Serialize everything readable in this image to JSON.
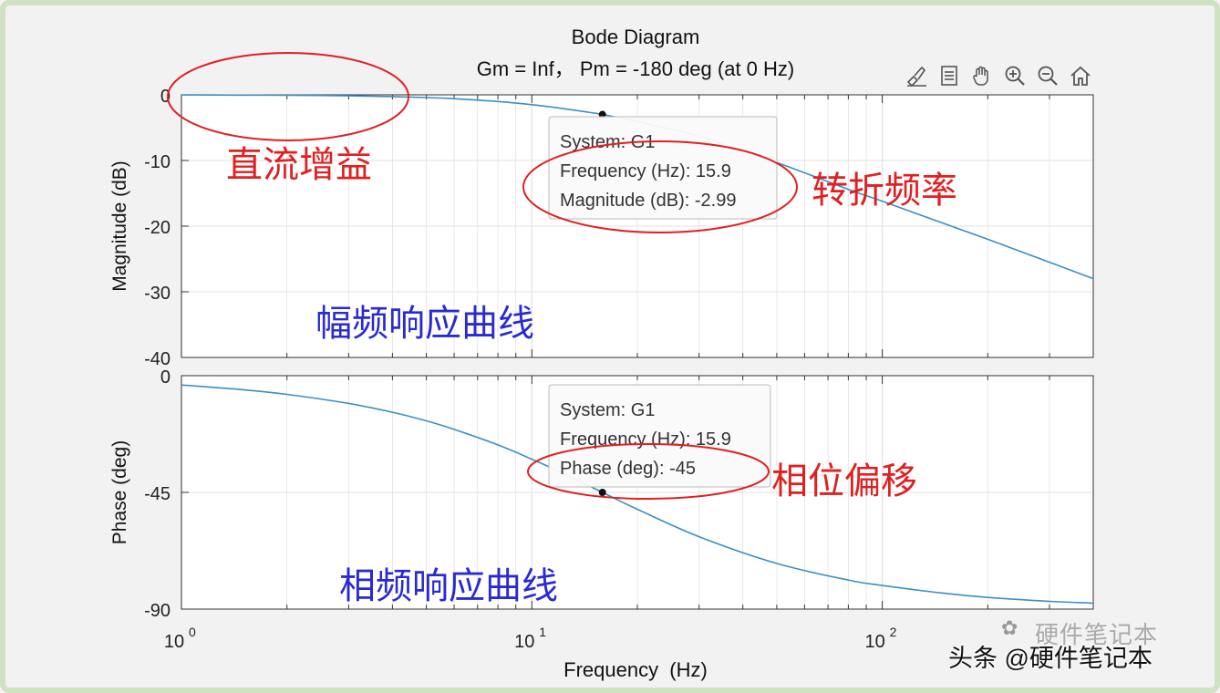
{
  "title": "Bode Diagram",
  "subtitle": "Gm = Inf， Pm = -180 deg (at 0 Hz)",
  "toolbar_icons": [
    "brush-icon",
    "datatip-icon",
    "pan-hand-icon",
    "zoom-in-icon",
    "zoom-out-icon",
    "home-icon"
  ],
  "annotations": {
    "dc_gain": "直流增益",
    "corner_freq": "转折频率",
    "mag_response": "幅频响应曲线",
    "phase_shift": "相位偏移",
    "phase_response": "相频响应曲线"
  },
  "watermark": "头条 @硬件笔记本",
  "watermark_ghost": "硬件笔记本",
  "colors": {
    "curve": "#3a8fc4",
    "annotation_red": "#e02020",
    "annotation_blue": "#2a2ad0",
    "grid": "#e2e2e2"
  },
  "chart_data": [
    {
      "type": "line",
      "name": "magnitude",
      "xlabel": "Frequency  (Hz)",
      "ylabel": "Magnitude (dB)",
      "xscale": "log",
      "xlim": [
        1,
        400
      ],
      "ylim": [
        -40,
        0
      ],
      "yticks": [
        0,
        -10,
        -20,
        -30,
        -40
      ],
      "ytick_labels": [
        "0",
        "-10",
        "-20",
        "-30",
        "-40"
      ],
      "grid": true,
      "x": [
        1,
        1.5,
        2,
        3,
        4,
        5,
        6,
        8,
        10,
        12,
        15.9,
        20,
        30,
        50,
        80,
        100,
        150,
        200,
        300,
        400
      ],
      "y": [
        -0.02,
        -0.04,
        -0.07,
        -0.15,
        -0.27,
        -0.41,
        -0.59,
        -1.01,
        -1.5,
        -2.03,
        -2.99,
        -4.08,
        -6.32,
        -10.3,
        -14.4,
        -16.2,
        -19.6,
        -22.0,
        -25.5,
        -28.0
      ],
      "datatip": {
        "x": 15.9,
        "y": -2.99,
        "lines": [
          "System: G1",
          "Frequency (Hz): 15.9",
          "Magnitude (dB): -2.99"
        ]
      }
    },
    {
      "type": "line",
      "name": "phase",
      "xlabel": "Frequency  (Hz)",
      "ylabel": "Phase (deg)",
      "xscale": "log",
      "xlim": [
        1,
        400
      ],
      "ylim": [
        -90,
        0
      ],
      "yticks": [
        0,
        -45,
        -90
      ],
      "ytick_labels": [
        "0",
        "-45",
        "-90"
      ],
      "xticks": [
        1,
        10,
        100
      ],
      "grid": true,
      "x": [
        1,
        1.5,
        2,
        3,
        4,
        5,
        6,
        8,
        10,
        12,
        15.9,
        20,
        30,
        50,
        80,
        100,
        150,
        200,
        300,
        400
      ],
      "y": [
        -3.6,
        -5.4,
        -7.2,
        -10.7,
        -14.1,
        -17.4,
        -20.7,
        -26.7,
        -32.2,
        -37.0,
        -45.0,
        -51.5,
        -62.1,
        -72.4,
        -78.8,
        -80.9,
        -83.9,
        -85.5,
        -87.0,
        -87.7
      ],
      "datatip": {
        "x": 15.9,
        "y": -45,
        "lines": [
          "System: G1",
          "Frequency (Hz): 15.9",
          "Phase (deg): -45"
        ]
      }
    }
  ]
}
